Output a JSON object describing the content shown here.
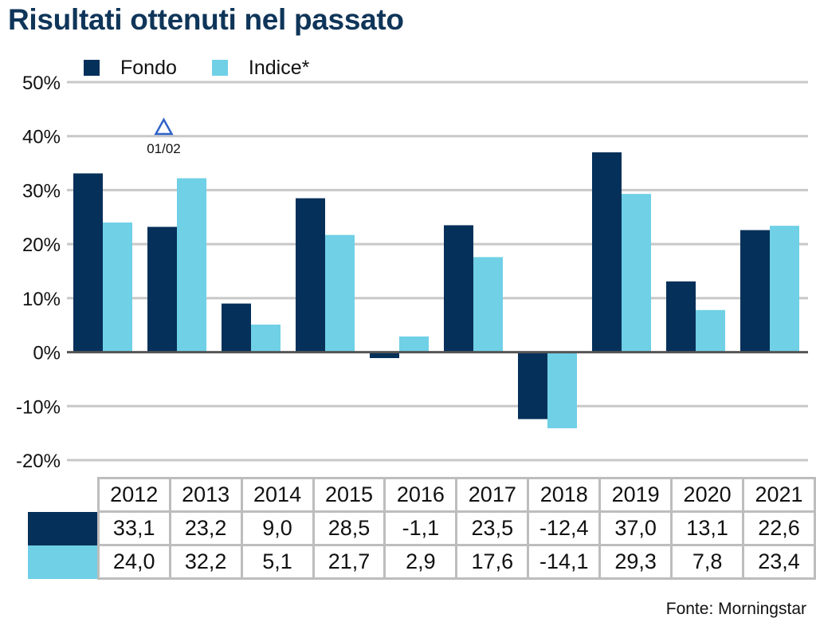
{
  "title": "Risultati ottenuti nel passato",
  "source": "Fonte: Morningstar",
  "colors": {
    "fondo": "#05305a",
    "indice": "#6fd0e6",
    "grid": "#c8c8c8",
    "axis": "#555555",
    "marker": "#2f63c8"
  },
  "legend": [
    {
      "label": "Fondo",
      "color": "#05305a"
    },
    {
      "label": "Indice*",
      "color": "#6fd0e6"
    }
  ],
  "marker": {
    "icon": "triangle-up-icon",
    "label": "01/02",
    "category": "2013"
  },
  "chart_data": {
    "type": "bar",
    "title": "Risultati ottenuti nel passato",
    "xlabel": "",
    "ylabel": "",
    "categories": [
      "2012",
      "2013",
      "2014",
      "2015",
      "2016",
      "2017",
      "2018",
      "2019",
      "2020",
      "2021"
    ],
    "series": [
      {
        "name": "Fondo",
        "values": [
          33.1,
          23.2,
          9.0,
          28.5,
          -1.1,
          23.5,
          -12.4,
          37.0,
          13.1,
          22.6
        ]
      },
      {
        "name": "Indice*",
        "values": [
          24.0,
          32.2,
          5.1,
          21.7,
          2.9,
          17.6,
          -14.1,
          29.3,
          7.8,
          23.4
        ]
      }
    ],
    "ylim": [
      -20,
      50
    ],
    "yticks": [
      50,
      40,
      30,
      20,
      10,
      0,
      -10,
      -20
    ],
    "ytick_labels": [
      "50%",
      "40%",
      "30%",
      "20%",
      "10%",
      "0%",
      "-10%",
      "-20%"
    ],
    "grid": true,
    "legend_position": "top-left"
  },
  "table": {
    "headers": [
      "2012",
      "2013",
      "2014",
      "2015",
      "2016",
      "2017",
      "2018",
      "2019",
      "2020",
      "2021"
    ],
    "rows": [
      {
        "series": "Fondo",
        "cells": [
          "33,1",
          "23,2",
          "9,0",
          "28,5",
          "-1,1",
          "23,5",
          "-12,4",
          "37,0",
          "13,1",
          "22,6"
        ]
      },
      {
        "series": "Indice*",
        "cells": [
          "24,0",
          "32,2",
          "5,1",
          "21,7",
          "2,9",
          "17,6",
          "-14,1",
          "29,3",
          "7,8",
          "23,4"
        ]
      }
    ]
  }
}
